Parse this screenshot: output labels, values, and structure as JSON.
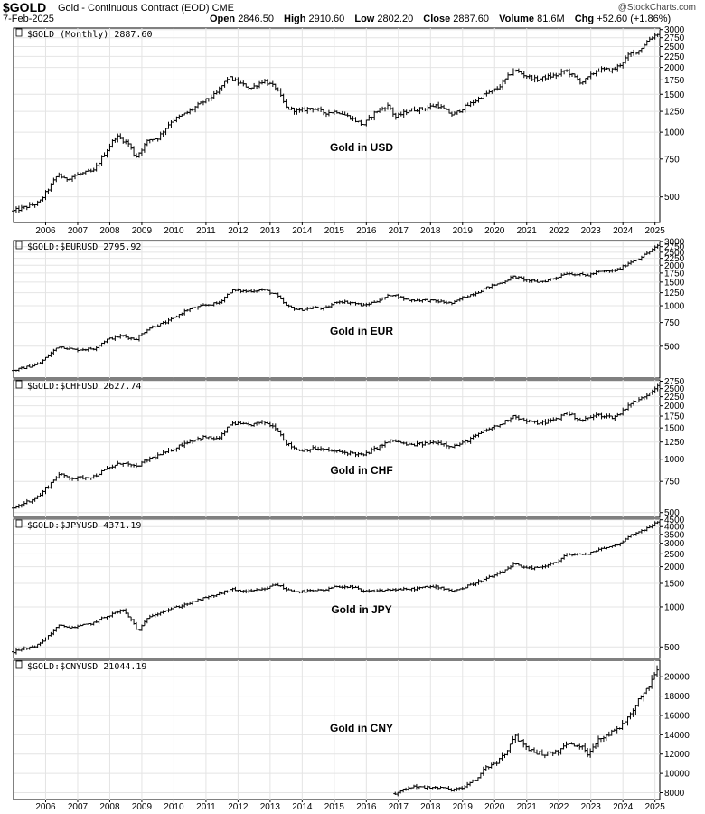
{
  "header": {
    "symbol": "$GOLD",
    "contract_name": "Gold - Continuous Contract (EOD)",
    "exchange": "CME",
    "date": "7-Feb-2025",
    "credit": "@StockCharts.com",
    "open_label": "Open",
    "open": "2846.50",
    "high_label": "High",
    "high": "2910.60",
    "low_label": "Low",
    "low": "2802.20",
    "close_label": "Close",
    "close": "2887.60",
    "volume_label": "Volume",
    "volume": "81.6M",
    "chg_label": "Chg",
    "chg": "+52.60 (+1.86%)"
  },
  "chart_data": [
    {
      "type": "ohlc",
      "label": "$GOLD (Monthly) 2887.60",
      "title": "Gold in USD",
      "scale": "log",
      "ylim": [
        380,
        3050
      ],
      "yticks": [
        500,
        750,
        1000,
        1250,
        1500,
        1750,
        2000,
        2250,
        2500,
        2750,
        3000
      ],
      "x_tick_labels": [
        "2006",
        "2007",
        "2008",
        "2009",
        "2010",
        "2011",
        "2012",
        "2013",
        "2014",
        "2015",
        "2016",
        "2017",
        "2018",
        "2019",
        "2020",
        "2021",
        "2022",
        "2023",
        "2024",
        "2025"
      ],
      "start_year": 2005.0,
      "end_year": 2025.1,
      "points": [
        [
          2005.0,
          430
        ],
        [
          2005.8,
          470
        ],
        [
          2006.4,
          640
        ],
        [
          2006.6,
          600
        ],
        [
          2006.9,
          630
        ],
        [
          2007.5,
          660
        ],
        [
          2007.8,
          780
        ],
        [
          2008.2,
          960
        ],
        [
          2008.6,
          880
        ],
        [
          2008.8,
          760
        ],
        [
          2009.2,
          920
        ],
        [
          2009.5,
          940
        ],
        [
          2009.9,
          1120
        ],
        [
          2010.4,
          1230
        ],
        [
          2010.9,
          1380
        ],
        [
          2011.3,
          1500
        ],
        [
          2011.7,
          1800
        ],
        [
          2012.0,
          1700
        ],
        [
          2012.4,
          1600
        ],
        [
          2012.8,
          1740
        ],
        [
          2013.2,
          1600
        ],
        [
          2013.5,
          1300
        ],
        [
          2013.9,
          1250
        ],
        [
          2014.3,
          1300
        ],
        [
          2014.7,
          1230
        ],
        [
          2015.1,
          1250
        ],
        [
          2015.5,
          1170
        ],
        [
          2015.9,
          1080
        ],
        [
          2016.3,
          1250
        ],
        [
          2016.7,
          1330
        ],
        [
          2016.9,
          1170
        ],
        [
          2017.3,
          1260
        ],
        [
          2017.8,
          1290
        ],
        [
          2018.2,
          1340
        ],
        [
          2018.7,
          1200
        ],
        [
          2019.0,
          1290
        ],
        [
          2019.4,
          1400
        ],
        [
          2019.7,
          1500
        ],
        [
          2020.1,
          1600
        ],
        [
          2020.6,
          1950
        ],
        [
          2020.9,
          1850
        ],
        [
          2021.3,
          1750
        ],
        [
          2021.6,
          1800
        ],
        [
          2022.0,
          1850
        ],
        [
          2022.2,
          1950
        ],
        [
          2022.7,
          1700
        ],
        [
          2022.9,
          1780
        ],
        [
          2023.2,
          1950
        ],
        [
          2023.7,
          1950
        ],
        [
          2023.9,
          2050
        ],
        [
          2024.2,
          2300
        ],
        [
          2024.5,
          2400
        ],
        [
          2024.8,
          2700
        ],
        [
          2025.1,
          2888
        ]
      ],
      "noise": 0.06
    },
    {
      "type": "ohlc",
      "label": "$GOLD:$EURUSD 2795.92",
      "title": "Gold in EUR",
      "scale": "log",
      "ylim": [
        290,
        3050
      ],
      "yticks": [
        500,
        750,
        1000,
        1250,
        1500,
        1750,
        2000,
        2250,
        2500,
        2750,
        3000
      ],
      "start_year": 2005.0,
      "end_year": 2025.1,
      "points": [
        [
          2005.0,
          330
        ],
        [
          2005.8,
          370
        ],
        [
          2006.4,
          500
        ],
        [
          2006.9,
          470
        ],
        [
          2007.5,
          480
        ],
        [
          2007.9,
          560
        ],
        [
          2008.4,
          600
        ],
        [
          2008.8,
          560
        ],
        [
          2009.2,
          680
        ],
        [
          2009.8,
          760
        ],
        [
          2010.4,
          930
        ],
        [
          2010.9,
          1000
        ],
        [
          2011.4,
          1050
        ],
        [
          2011.8,
          1300
        ],
        [
          2012.3,
          1280
        ],
        [
          2012.8,
          1320
        ],
        [
          2013.2,
          1200
        ],
        [
          2013.5,
          1000
        ],
        [
          2013.9,
          930
        ],
        [
          2014.4,
          970
        ],
        [
          2014.7,
          950
        ],
        [
          2015.1,
          1080
        ],
        [
          2015.6,
          1050
        ],
        [
          2015.9,
          1000
        ],
        [
          2016.4,
          1100
        ],
        [
          2016.8,
          1220
        ],
        [
          2017.3,
          1100
        ],
        [
          2017.8,
          1100
        ],
        [
          2018.2,
          1080
        ],
        [
          2018.7,
          1040
        ],
        [
          2019.0,
          1150
        ],
        [
          2019.5,
          1270
        ],
        [
          2019.8,
          1380
        ],
        [
          2020.2,
          1480
        ],
        [
          2020.6,
          1650
        ],
        [
          2020.9,
          1570
        ],
        [
          2021.3,
          1500
        ],
        [
          2021.6,
          1530
        ],
        [
          2022.0,
          1650
        ],
        [
          2022.2,
          1750
        ],
        [
          2022.7,
          1700
        ],
        [
          2022.9,
          1680
        ],
        [
          2023.2,
          1780
        ],
        [
          2023.7,
          1820
        ],
        [
          2023.9,
          1880
        ],
        [
          2024.2,
          2100
        ],
        [
          2024.5,
          2250
        ],
        [
          2024.8,
          2500
        ],
        [
          2025.1,
          2796
        ]
      ],
      "noise": 0.06
    },
    {
      "type": "ohlc",
      "label": "$GOLD:$CHFUSD 2627.74",
      "title": "Gold in CHF",
      "scale": "log",
      "ylim": [
        470,
        2800
      ],
      "yticks": [
        500,
        750,
        1000,
        1250,
        1500,
        1750,
        2000,
        2250,
        2500,
        2750
      ],
      "start_year": 2005.0,
      "end_year": 2025.1,
      "points": [
        [
          2005.0,
          530
        ],
        [
          2005.8,
          620
        ],
        [
          2006.4,
          820
        ],
        [
          2006.9,
          780
        ],
        [
          2007.5,
          800
        ],
        [
          2007.9,
          880
        ],
        [
          2008.4,
          960
        ],
        [
          2008.8,
          900
        ],
        [
          2009.2,
          1000
        ],
        [
          2009.8,
          1100
        ],
        [
          2010.4,
          1250
        ],
        [
          2010.9,
          1330
        ],
        [
          2011.4,
          1300
        ],
        [
          2011.8,
          1600
        ],
        [
          2012.3,
          1550
        ],
        [
          2012.8,
          1620
        ],
        [
          2013.2,
          1500
        ],
        [
          2013.5,
          1230
        ],
        [
          2013.9,
          1120
        ],
        [
          2014.4,
          1150
        ],
        [
          2014.7,
          1130
        ],
        [
          2015.1,
          1100
        ],
        [
          2015.6,
          1080
        ],
        [
          2015.9,
          1050
        ],
        [
          2016.4,
          1180
        ],
        [
          2016.8,
          1280
        ],
        [
          2017.3,
          1200
        ],
        [
          2017.8,
          1220
        ],
        [
          2018.2,
          1250
        ],
        [
          2018.7,
          1180
        ],
        [
          2019.0,
          1230
        ],
        [
          2019.5,
          1380
        ],
        [
          2019.8,
          1480
        ],
        [
          2020.2,
          1570
        ],
        [
          2020.6,
          1770
        ],
        [
          2020.9,
          1650
        ],
        [
          2021.3,
          1600
        ],
        [
          2021.6,
          1620
        ],
        [
          2022.0,
          1700
        ],
        [
          2022.2,
          1850
        ],
        [
          2022.7,
          1650
        ],
        [
          2022.9,
          1700
        ],
        [
          2023.2,
          1780
        ],
        [
          2023.7,
          1720
        ],
        [
          2023.9,
          1800
        ],
        [
          2024.2,
          2050
        ],
        [
          2024.5,
          2150
        ],
        [
          2024.8,
          2350
        ],
        [
          2025.1,
          2628
        ]
      ],
      "noise": 0.06
    },
    {
      "type": "ohlc",
      "label": "$GOLD:$JPYUSD 4371.19",
      "title": "Gold in JPY",
      "scale": "log",
      "ylim": [
        410,
        4550
      ],
      "yticks": [
        500,
        1000,
        1500,
        2000,
        2500,
        3000,
        3500,
        4000,
        4500
      ],
      "start_year": 2005.0,
      "end_year": 2025.1,
      "points": [
        [
          2005.0,
          460
        ],
        [
          2005.8,
          520
        ],
        [
          2006.4,
          720
        ],
        [
          2006.9,
          700
        ],
        [
          2007.5,
          760
        ],
        [
          2007.9,
          850
        ],
        [
          2008.4,
          950
        ],
        [
          2008.7,
          780
        ],
        [
          2008.9,
          650
        ],
        [
          2009.2,
          850
        ],
        [
          2009.8,
          950
        ],
        [
          2010.4,
          1050
        ],
        [
          2010.9,
          1150
        ],
        [
          2011.4,
          1250
        ],
        [
          2011.8,
          1350
        ],
        [
          2012.3,
          1300
        ],
        [
          2012.8,
          1350
        ],
        [
          2013.2,
          1480
        ],
        [
          2013.5,
          1350
        ],
        [
          2013.9,
          1300
        ],
        [
          2014.4,
          1320
        ],
        [
          2014.7,
          1330
        ],
        [
          2015.1,
          1430
        ],
        [
          2015.6,
          1400
        ],
        [
          2015.9,
          1300
        ],
        [
          2016.4,
          1320
        ],
        [
          2016.8,
          1350
        ],
        [
          2017.3,
          1350
        ],
        [
          2017.8,
          1400
        ],
        [
          2018.2,
          1420
        ],
        [
          2018.7,
          1320
        ],
        [
          2019.0,
          1380
        ],
        [
          2019.5,
          1550
        ],
        [
          2019.8,
          1650
        ],
        [
          2020.2,
          1800
        ],
        [
          2020.6,
          2100
        ],
        [
          2020.9,
          1950
        ],
        [
          2021.3,
          1950
        ],
        [
          2021.6,
          2050
        ],
        [
          2022.0,
          2200
        ],
        [
          2022.2,
          2450
        ],
        [
          2022.7,
          2500
        ],
        [
          2022.9,
          2450
        ],
        [
          2023.2,
          2700
        ],
        [
          2023.7,
          2850
        ],
        [
          2023.9,
          3000
        ],
        [
          2024.2,
          3400
        ],
        [
          2024.5,
          3700
        ],
        [
          2024.8,
          3900
        ],
        [
          2025.1,
          4371
        ]
      ],
      "noise": 0.06
    },
    {
      "type": "ohlc",
      "label": "$GOLD:$CNYUSD 21044.19",
      "title": "Gold in CNY",
      "scale": "linear",
      "ylim": [
        7300,
        21700
      ],
      "yticks": [
        8000,
        10000,
        12000,
        14000,
        16000,
        18000,
        20000
      ],
      "x_tick_labels": [
        "2006",
        "2007",
        "2008",
        "2009",
        "2010",
        "2011",
        "2012",
        "2013",
        "2014",
        "2015",
        "2016",
        "2017",
        "2018",
        "2019",
        "2020",
        "2021",
        "2022",
        "2023",
        "2024",
        "2025"
      ],
      "start_year": 2016.9,
      "end_year": 2025.1,
      "points": [
        [
          2016.9,
          7900
        ],
        [
          2017.2,
          8400
        ],
        [
          2017.6,
          8700
        ],
        [
          2017.9,
          8500
        ],
        [
          2018.3,
          8500
        ],
        [
          2018.7,
          8300
        ],
        [
          2019.0,
          8500
        ],
        [
          2019.4,
          9300
        ],
        [
          2019.7,
          10600
        ],
        [
          2020.0,
          11000
        ],
        [
          2020.4,
          12200
        ],
        [
          2020.6,
          14000
        ],
        [
          2020.9,
          13000
        ],
        [
          2021.2,
          12200
        ],
        [
          2021.6,
          12000
        ],
        [
          2022.0,
          12300
        ],
        [
          2022.2,
          13000
        ],
        [
          2022.7,
          12800
        ],
        [
          2022.9,
          12000
        ],
        [
          2023.2,
          13500
        ],
        [
          2023.7,
          14300
        ],
        [
          2023.9,
          14800
        ],
        [
          2024.2,
          16000
        ],
        [
          2024.5,
          17800
        ],
        [
          2024.8,
          19000
        ],
        [
          2025.1,
          21044
        ]
      ],
      "noise": 0.05
    }
  ]
}
